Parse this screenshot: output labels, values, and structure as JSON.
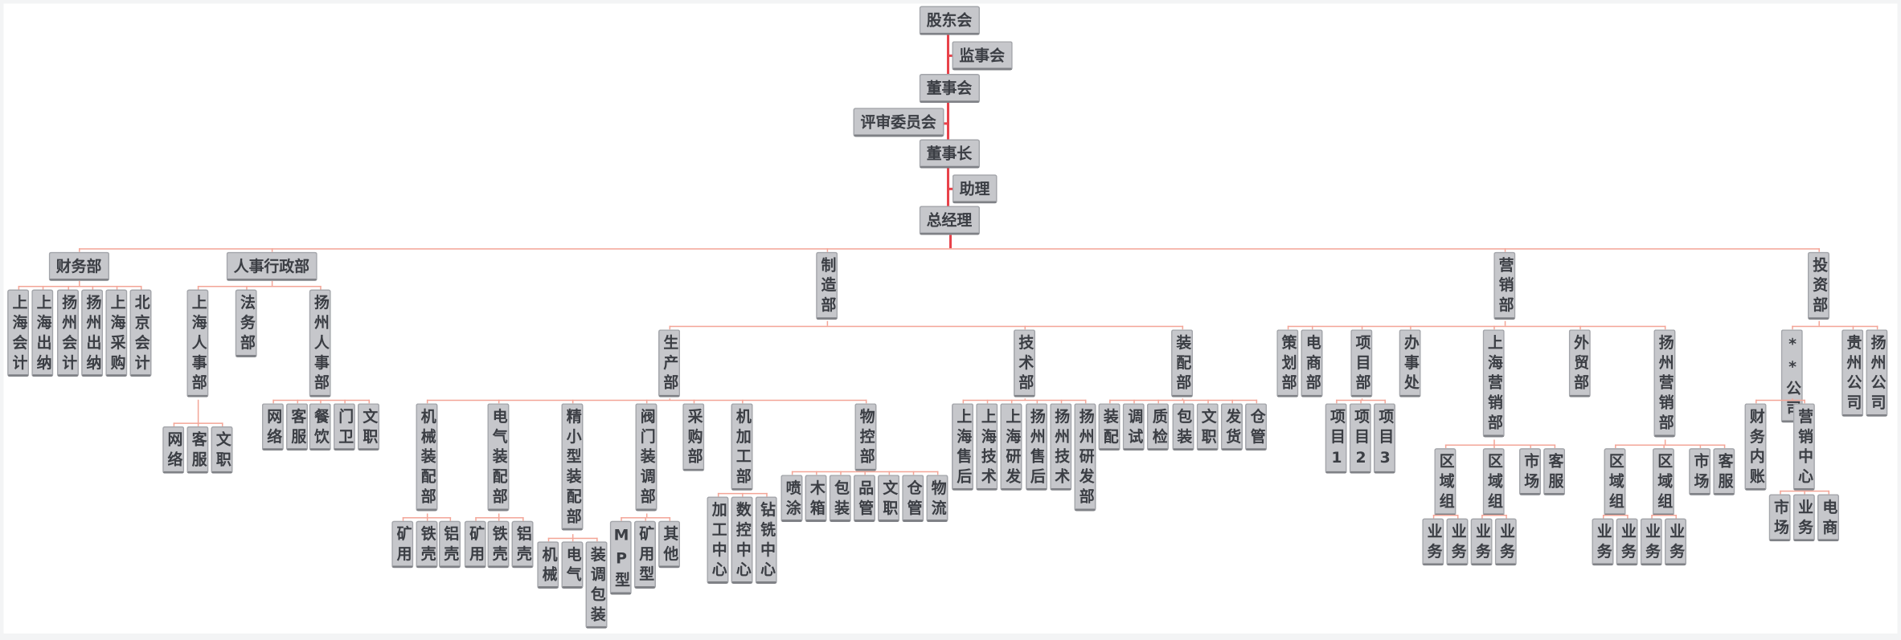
{
  "governance": {
    "shareholders": "股东会",
    "supervisors": "监事会",
    "board": "董事会",
    "review_committee": "评审委员会",
    "chairman": "董事长",
    "assistant": "助理"
  },
  "colors": {
    "node_fill": "#c6c7cb",
    "trunk_line": "#e8424a",
    "branch_line": "#f3a597",
    "text": "#3b3e44"
  },
  "org": {
    "label": "总经理",
    "children": [
      {
        "label": "财务部",
        "children": [
          {
            "label": "上海会计"
          },
          {
            "label": "上海出纳"
          },
          {
            "label": "扬州会计"
          },
          {
            "label": "扬州出纳"
          },
          {
            "label": "上海采购"
          },
          {
            "label": "北京会计"
          }
        ]
      },
      {
        "label": "人事行政部",
        "children": [
          {
            "label": "上海人事部",
            "children": [
              {
                "label": "网络"
              },
              {
                "label": "客服"
              },
              {
                "label": "文职"
              }
            ]
          },
          {
            "label": "法务部"
          },
          {
            "label": "扬州人事部",
            "children": [
              {
                "label": "网络"
              },
              {
                "label": "客服"
              },
              {
                "label": "餐饮"
              },
              {
                "label": "门卫"
              },
              {
                "label": "文职"
              }
            ]
          }
        ]
      },
      {
        "label": "制造部",
        "children": [
          {
            "label": "生产部",
            "children": [
              {
                "label": "机械装配部",
                "children": [
                  {
                    "label": "矿用"
                  },
                  {
                    "label": "铁壳"
                  },
                  {
                    "label": "铝壳"
                  }
                ]
              },
              {
                "label": "电气装配部",
                "children": [
                  {
                    "label": "矿用"
                  },
                  {
                    "label": "铁壳"
                  },
                  {
                    "label": "铝壳"
                  }
                ]
              },
              {
                "label": "精小型装配部",
                "children": [
                  {
                    "label": "机械"
                  },
                  {
                    "label": "电气"
                  },
                  {
                    "label": "装调包装"
                  }
                ]
              },
              {
                "label": "阀门装调部",
                "children": [
                  {
                    "label": "MP型"
                  },
                  {
                    "label": "矿用型"
                  },
                  {
                    "label": "其他"
                  }
                ]
              },
              {
                "label": "采购部"
              },
              {
                "label": "机加工部",
                "children": [
                  {
                    "label": "加工中心"
                  },
                  {
                    "label": "数控中心"
                  },
                  {
                    "label": "钻铣中心"
                  }
                ]
              },
              {
                "label": "物控部",
                "children": [
                  {
                    "label": "喷涂"
                  },
                  {
                    "label": "木箱"
                  },
                  {
                    "label": "包装"
                  },
                  {
                    "label": "品管"
                  },
                  {
                    "label": "文职"
                  },
                  {
                    "label": "仓管"
                  },
                  {
                    "label": "物流"
                  }
                ]
              }
            ]
          },
          {
            "label": "技术部",
            "children": [
              {
                "label": "上海售后"
              },
              {
                "label": "上海技术"
              },
              {
                "label": "上海研发"
              },
              {
                "label": "扬州售后"
              },
              {
                "label": "扬州技术"
              },
              {
                "label": "扬州研发部"
              }
            ]
          },
          {
            "label": "装配部",
            "children": [
              {
                "label": "装配"
              },
              {
                "label": "调试"
              },
              {
                "label": "质检"
              },
              {
                "label": "包装"
              },
              {
                "label": "文职"
              },
              {
                "label": "发货"
              },
              {
                "label": "仓管"
              }
            ]
          }
        ]
      },
      {
        "label": "营销部",
        "children": [
          {
            "label": "策划部"
          },
          {
            "label": "电商部"
          },
          {
            "label": "项目部",
            "children": [
              {
                "label": "项目1"
              },
              {
                "label": "项目2"
              },
              {
                "label": "项目3"
              }
            ]
          },
          {
            "label": "办事处"
          },
          {
            "label": "上海营销部",
            "children": [
              {
                "label": "区域组",
                "children": [
                  {
                    "label": "业务"
                  },
                  {
                    "label": "业务"
                  }
                ]
              },
              {
                "label": "区域组",
                "children": [
                  {
                    "label": "业务"
                  },
                  {
                    "label": "业务"
                  }
                ]
              },
              {
                "label": "市场"
              },
              {
                "label": "客服"
              }
            ]
          },
          {
            "label": "外贸部"
          },
          {
            "label": "扬州营销部",
            "children": [
              {
                "label": "区域组",
                "children": [
                  {
                    "label": "业务"
                  },
                  {
                    "label": "业务"
                  }
                ]
              },
              {
                "label": "区域组",
                "children": [
                  {
                    "label": "业务"
                  },
                  {
                    "label": "业务"
                  }
                ]
              },
              {
                "label": "市场"
              },
              {
                "label": "客服"
              }
            ]
          }
        ]
      },
      {
        "label": "投资部",
        "children": [
          {
            "label": "**公司",
            "children": [
              {
                "label": "财务内账"
              },
              {
                "label": "营销中心",
                "children": [
                  {
                    "label": "市场"
                  },
                  {
                    "label": "业务"
                  },
                  {
                    "label": "电商"
                  }
                ]
              }
            ]
          },
          {
            "label": "贵州公司"
          },
          {
            "label": "扬州公司"
          }
        ]
      }
    ]
  }
}
